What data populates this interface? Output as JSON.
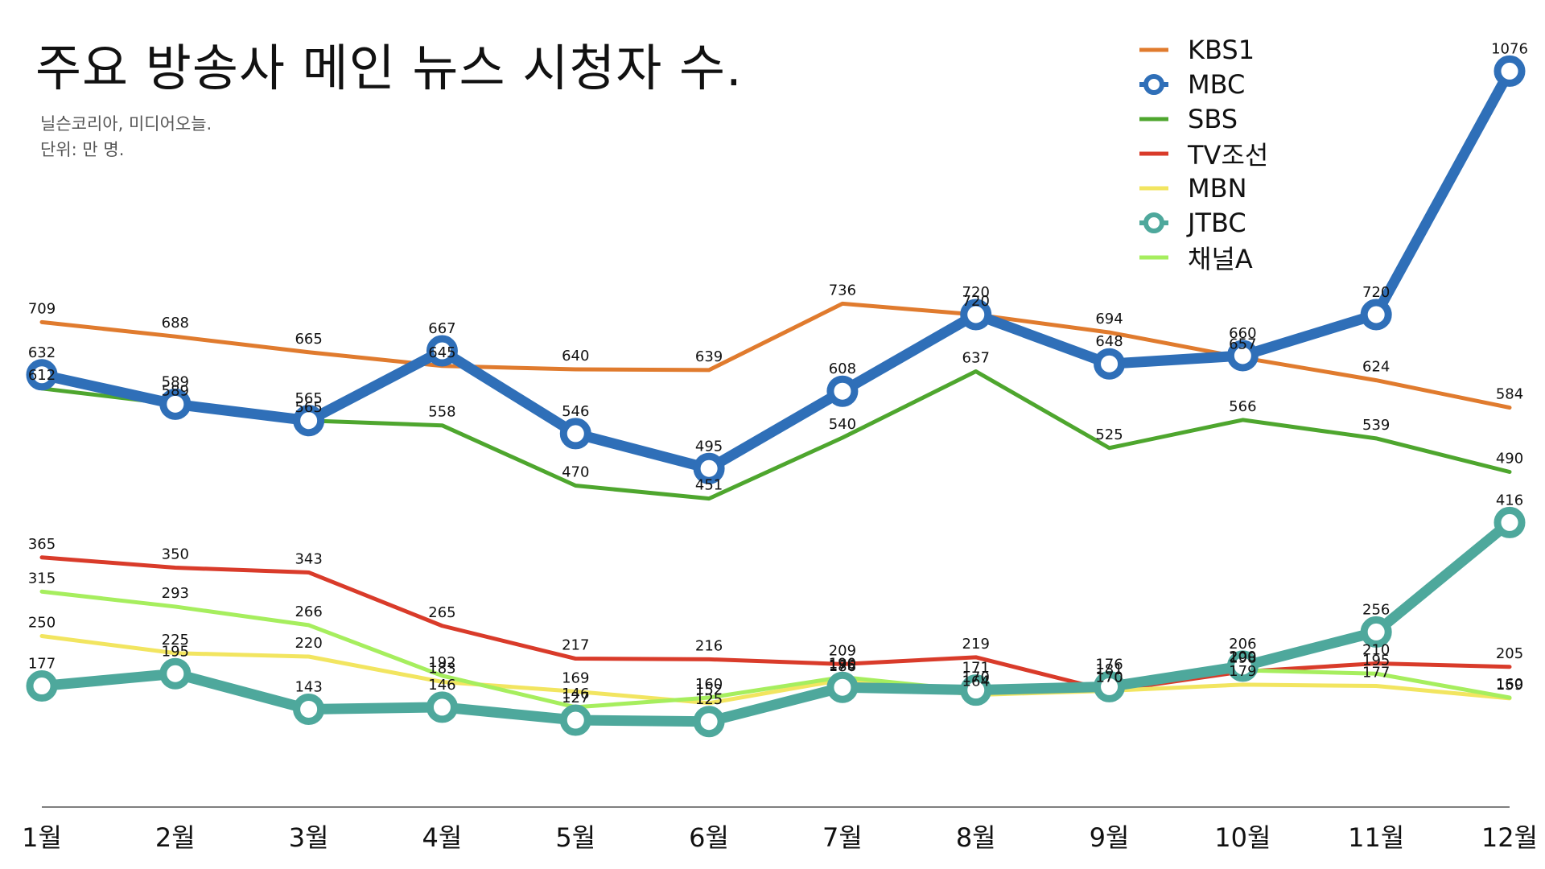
{
  "chart_data": {
    "type": "line",
    "title": "주요 방송사 메인 뉴스 시청자 수.",
    "source_lines": [
      "닐슨코리아, 미디어오늘.",
      "단위: 만 명."
    ],
    "categories": [
      "1월",
      "2월",
      "3월",
      "4월",
      "5월",
      "6월",
      "7월",
      "8월",
      "9월",
      "10월",
      "11월",
      "12월"
    ],
    "ylim": [
      0,
      1100
    ],
    "grid": false,
    "legend_position": "top-right",
    "series": [
      {
        "name": "KBS1",
        "color": "#e07b2e",
        "marker": false,
        "width": 5,
        "values": [
          709,
          688,
          665,
          645,
          640,
          639,
          736,
          720,
          694,
          657,
          624,
          584
        ]
      },
      {
        "name": "MBC",
        "color": "#2f6fb8",
        "marker": true,
        "width": 13,
        "values": [
          632,
          589,
          565,
          667,
          546,
          495,
          608,
          720,
          648,
          660,
          720,
          1076
        ]
      },
      {
        "name": "SBS",
        "color": "#4ea62e",
        "marker": false,
        "width": 5,
        "values": [
          612,
          589,
          565,
          558,
          470,
          451,
          540,
          637,
          525,
          566,
          539,
          490
        ]
      },
      {
        "name": "TV조선",
        "color": "#d93b2a",
        "marker": false,
        "width": 5,
        "values": [
          365,
          350,
          343,
          265,
          217,
          216,
          209,
          219,
          170,
          198,
          210,
          205
        ]
      },
      {
        "name": "MBN",
        "color": "#f2e560",
        "marker": false,
        "width": 5,
        "values": [
          250,
          225,
          220,
          183,
          169,
          152,
          186,
          164,
          170,
          179,
          177,
          159
        ]
      },
      {
        "name": "JTBC",
        "color": "#4ea89c",
        "marker": true,
        "width": 13,
        "values": [
          177,
          195,
          143,
          146,
          127,
          125,
          175,
          171,
          176,
          206,
          256,
          416
        ]
      },
      {
        "name": "채널A",
        "color": "#a6ee5e",
        "marker": false,
        "width": 5,
        "values": [
          315,
          293,
          266,
          192,
          146,
          160,
          190,
          170,
          181,
          200,
          195,
          160
        ]
      }
    ]
  }
}
